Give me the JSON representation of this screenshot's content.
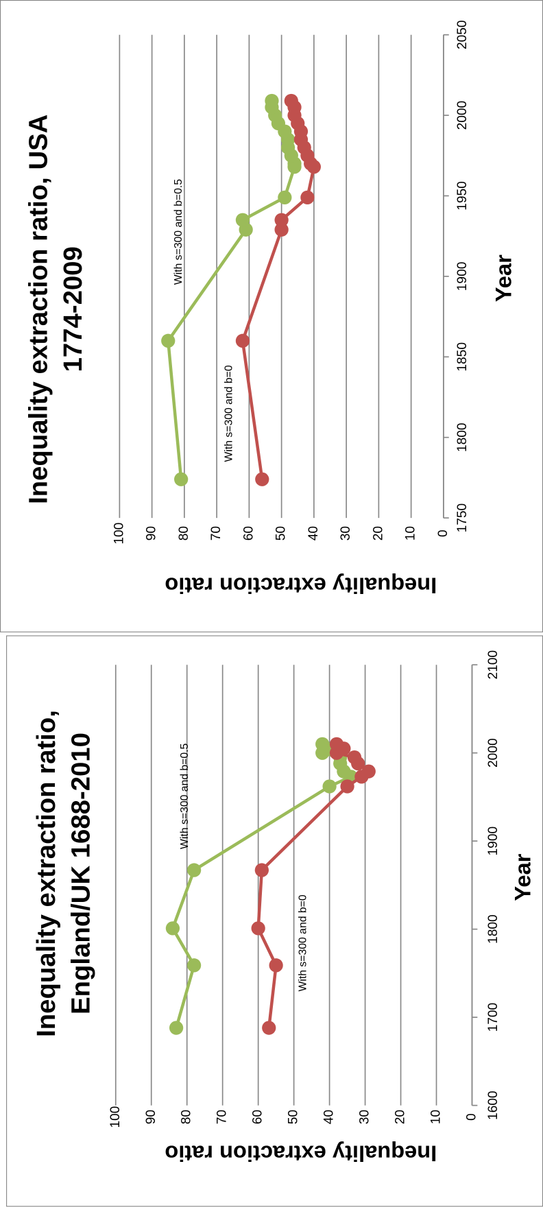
{
  "chart_data": [
    {
      "type": "line",
      "title": [
        "Inequality extraction ratio, USA",
        "1774-2009"
      ],
      "x_label": "Year",
      "y_label": "Inequality extraction ratio",
      "annotations": [
        "With s=300 and b=0.5",
        "With s=300 and b=0"
      ],
      "x": [
        1774,
        1860,
        1929,
        1935,
        1949,
        1968,
        1970,
        1975,
        1980,
        1985,
        1990,
        1995,
        2000,
        2005,
        2009
      ],
      "series": [
        {
          "name": "With s=300 and b=0.5",
          "color": "#9bbb59",
          "values": [
            81,
            85,
            61,
            62,
            49,
            46,
            46,
            47,
            48,
            48,
            49,
            51,
            52,
            53,
            53
          ]
        },
        {
          "name": "With s=300 and b=0",
          "color": "#c0504d",
          "values": [
            56,
            62,
            50,
            50,
            42,
            40,
            41,
            42,
            43,
            44,
            44,
            45,
            46,
            46,
            47
          ]
        }
      ],
      "xlim": [
        1750,
        2050
      ],
      "xticks": [
        1750,
        1800,
        1850,
        1900,
        1950,
        2000,
        2050
      ],
      "ylim": [
        0,
        100
      ],
      "yticks": [
        0,
        10,
        20,
        30,
        40,
        50,
        60,
        70,
        80,
        90,
        100
      ],
      "grid": true
    },
    {
      "type": "line",
      "title": [
        "Inequality extraction ratio,",
        "England/UK 1688-2010"
      ],
      "x_label": "Year",
      "y_label": "Inequality extraction ratio",
      "annotations": [
        "With s=300 and b=0.5",
        "With s=300 and b=0"
      ],
      "x": [
        1688,
        1759,
        1801,
        1867,
        1962,
        1973,
        1979,
        1988,
        1995,
        2000,
        2005,
        2010
      ],
      "series": [
        {
          "name": "With s=300 and b=0.5",
          "color": "#9bbb59",
          "values": [
            83,
            78,
            84,
            78,
            40,
            34,
            36,
            37,
            37,
            42,
            41,
            42
          ]
        },
        {
          "name": "With s=300 and b=0",
          "color": "#c0504d",
          "values": [
            57,
            55,
            60,
            59,
            35,
            31,
            29,
            32,
            33,
            38,
            36,
            38
          ]
        }
      ],
      "xlim": [
        1600,
        2100
      ],
      "xticks": [
        1600,
        1700,
        1800,
        1900,
        2000,
        2100
      ],
      "ylim": [
        0,
        100
      ],
      "yticks": [
        0,
        10,
        20,
        30,
        40,
        50,
        60,
        70,
        80,
        90,
        100
      ],
      "grid": true
    }
  ]
}
